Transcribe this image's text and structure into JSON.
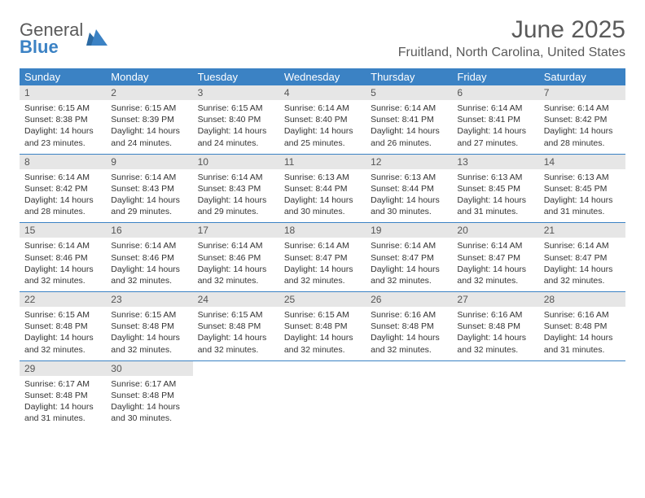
{
  "logo": {
    "word1": "General",
    "word2": "Blue"
  },
  "title": "June 2025",
  "subtitle": "Fruitland, North Carolina, United States",
  "colors": {
    "header_bg": "#3b82c4",
    "header_fg": "#ffffff",
    "daynum_bg": "#e6e6e6",
    "border": "#3b82c4",
    "text": "#333333"
  },
  "dayNames": [
    "Sunday",
    "Monday",
    "Tuesday",
    "Wednesday",
    "Thursday",
    "Friday",
    "Saturday"
  ],
  "weeks": [
    [
      {
        "n": "1",
        "sr": "6:15 AM",
        "ss": "8:38 PM",
        "dl": "14 hours and 23 minutes."
      },
      {
        "n": "2",
        "sr": "6:15 AM",
        "ss": "8:39 PM",
        "dl": "14 hours and 24 minutes."
      },
      {
        "n": "3",
        "sr": "6:15 AM",
        "ss": "8:40 PM",
        "dl": "14 hours and 24 minutes."
      },
      {
        "n": "4",
        "sr": "6:14 AM",
        "ss": "8:40 PM",
        "dl": "14 hours and 25 minutes."
      },
      {
        "n": "5",
        "sr": "6:14 AM",
        "ss": "8:41 PM",
        "dl": "14 hours and 26 minutes."
      },
      {
        "n": "6",
        "sr": "6:14 AM",
        "ss": "8:41 PM",
        "dl": "14 hours and 27 minutes."
      },
      {
        "n": "7",
        "sr": "6:14 AM",
        "ss": "8:42 PM",
        "dl": "14 hours and 28 minutes."
      }
    ],
    [
      {
        "n": "8",
        "sr": "6:14 AM",
        "ss": "8:42 PM",
        "dl": "14 hours and 28 minutes."
      },
      {
        "n": "9",
        "sr": "6:14 AM",
        "ss": "8:43 PM",
        "dl": "14 hours and 29 minutes."
      },
      {
        "n": "10",
        "sr": "6:14 AM",
        "ss": "8:43 PM",
        "dl": "14 hours and 29 minutes."
      },
      {
        "n": "11",
        "sr": "6:13 AM",
        "ss": "8:44 PM",
        "dl": "14 hours and 30 minutes."
      },
      {
        "n": "12",
        "sr": "6:13 AM",
        "ss": "8:44 PM",
        "dl": "14 hours and 30 minutes."
      },
      {
        "n": "13",
        "sr": "6:13 AM",
        "ss": "8:45 PM",
        "dl": "14 hours and 31 minutes."
      },
      {
        "n": "14",
        "sr": "6:13 AM",
        "ss": "8:45 PM",
        "dl": "14 hours and 31 minutes."
      }
    ],
    [
      {
        "n": "15",
        "sr": "6:14 AM",
        "ss": "8:46 PM",
        "dl": "14 hours and 32 minutes."
      },
      {
        "n": "16",
        "sr": "6:14 AM",
        "ss": "8:46 PM",
        "dl": "14 hours and 32 minutes."
      },
      {
        "n": "17",
        "sr": "6:14 AM",
        "ss": "8:46 PM",
        "dl": "14 hours and 32 minutes."
      },
      {
        "n": "18",
        "sr": "6:14 AM",
        "ss": "8:47 PM",
        "dl": "14 hours and 32 minutes."
      },
      {
        "n": "19",
        "sr": "6:14 AM",
        "ss": "8:47 PM",
        "dl": "14 hours and 32 minutes."
      },
      {
        "n": "20",
        "sr": "6:14 AM",
        "ss": "8:47 PM",
        "dl": "14 hours and 32 minutes."
      },
      {
        "n": "21",
        "sr": "6:14 AM",
        "ss": "8:47 PM",
        "dl": "14 hours and 32 minutes."
      }
    ],
    [
      {
        "n": "22",
        "sr": "6:15 AM",
        "ss": "8:48 PM",
        "dl": "14 hours and 32 minutes."
      },
      {
        "n": "23",
        "sr": "6:15 AM",
        "ss": "8:48 PM",
        "dl": "14 hours and 32 minutes."
      },
      {
        "n": "24",
        "sr": "6:15 AM",
        "ss": "8:48 PM",
        "dl": "14 hours and 32 minutes."
      },
      {
        "n": "25",
        "sr": "6:15 AM",
        "ss": "8:48 PM",
        "dl": "14 hours and 32 minutes."
      },
      {
        "n": "26",
        "sr": "6:16 AM",
        "ss": "8:48 PM",
        "dl": "14 hours and 32 minutes."
      },
      {
        "n": "27",
        "sr": "6:16 AM",
        "ss": "8:48 PM",
        "dl": "14 hours and 32 minutes."
      },
      {
        "n": "28",
        "sr": "6:16 AM",
        "ss": "8:48 PM",
        "dl": "14 hours and 31 minutes."
      }
    ],
    [
      {
        "n": "29",
        "sr": "6:17 AM",
        "ss": "8:48 PM",
        "dl": "14 hours and 31 minutes."
      },
      {
        "n": "30",
        "sr": "6:17 AM",
        "ss": "8:48 PM",
        "dl": "14 hours and 30 minutes."
      },
      null,
      null,
      null,
      null,
      null
    ]
  ],
  "labels": {
    "sunrise": "Sunrise:",
    "sunset": "Sunset:",
    "daylight": "Daylight:"
  }
}
